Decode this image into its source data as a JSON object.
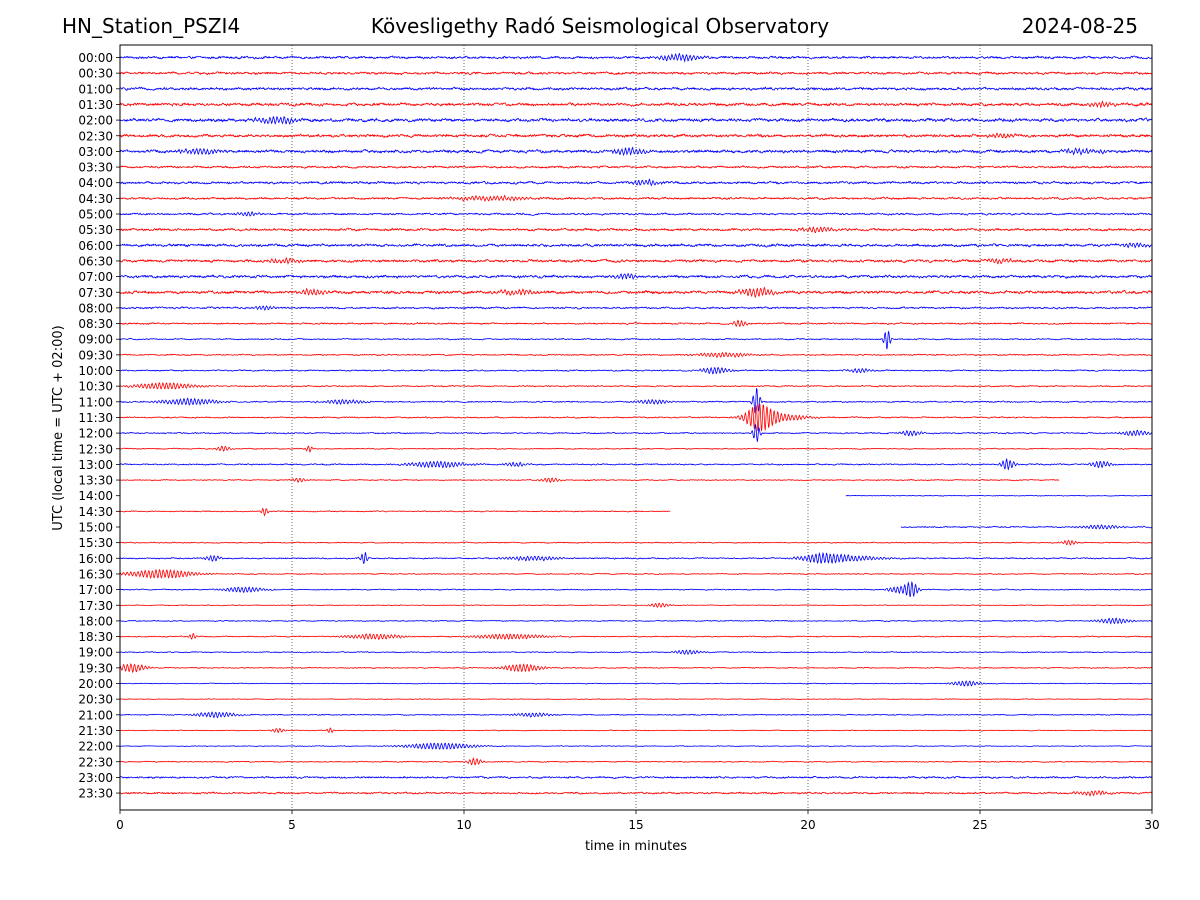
{
  "header": {
    "station": "HN_Station_PSZI4",
    "observatory": "Kövesligethy Radó Seismological Observatory",
    "date": "2024-08-25"
  },
  "chart_data": {
    "type": "line",
    "title": "Kövesligethy Radó Seismological Observatory",
    "xlabel": "time in minutes",
    "ylabel": "UTC (local time = UTC + 02:00)",
    "xlim": [
      0,
      30
    ],
    "x_ticks": [
      "0",
      "5",
      "10",
      "15",
      "20",
      "25",
      "30"
    ],
    "vertical_grid_minutes": [
      5,
      10,
      15,
      20,
      25
    ],
    "grid": "vertical dotted lines",
    "colors": {
      "even_rows": "#0000ff",
      "odd_rows": "#ff0000"
    },
    "traces": [
      {
        "label": "00:00",
        "start": 0,
        "end": 30,
        "noise": 0.9,
        "events": [
          [
            16.3,
            3.0,
            0.6
          ]
        ]
      },
      {
        "label": "00:30",
        "start": 0,
        "end": 30,
        "noise": 0.9,
        "events": []
      },
      {
        "label": "01:00",
        "start": 0,
        "end": 30,
        "noise": 1.0,
        "events": []
      },
      {
        "label": "01:30",
        "start": 0,
        "end": 30,
        "noise": 1.1,
        "events": [
          [
            28.5,
            2.0,
            0.4
          ]
        ]
      },
      {
        "label": "02:00",
        "start": 0,
        "end": 30,
        "noise": 1.2,
        "events": [
          [
            4.6,
            3.0,
            0.6
          ]
        ]
      },
      {
        "label": "02:30",
        "start": 0,
        "end": 30,
        "noise": 1.1,
        "events": [
          [
            25.6,
            2.0,
            0.4
          ]
        ]
      },
      {
        "label": "03:00",
        "start": 0,
        "end": 30,
        "noise": 1.1,
        "events": [
          [
            2.3,
            2.5,
            0.6
          ],
          [
            14.8,
            3.0,
            0.5
          ],
          [
            28.0,
            2.5,
            0.5
          ]
        ]
      },
      {
        "label": "03:30",
        "start": 0,
        "end": 30,
        "noise": 0.8,
        "events": []
      },
      {
        "label": "04:00",
        "start": 0,
        "end": 30,
        "noise": 0.9,
        "events": [
          [
            15.3,
            2.5,
            0.4
          ]
        ]
      },
      {
        "label": "04:30",
        "start": 0,
        "end": 30,
        "noise": 0.8,
        "events": [
          [
            10.8,
            2.0,
            1.2
          ]
        ]
      },
      {
        "label": "05:00",
        "start": 0,
        "end": 30,
        "noise": 0.7,
        "events": [
          [
            3.7,
            2.0,
            0.3
          ]
        ]
      },
      {
        "label": "05:30",
        "start": 0,
        "end": 30,
        "noise": 0.9,
        "events": [
          [
            20.3,
            2.0,
            0.6
          ]
        ]
      },
      {
        "label": "06:00",
        "start": 0,
        "end": 30,
        "noise": 1.0,
        "events": [
          [
            29.5,
            2.0,
            0.4
          ]
        ]
      },
      {
        "label": "06:30",
        "start": 0,
        "end": 30,
        "noise": 1.0,
        "events": [
          [
            4.8,
            2.0,
            0.5
          ],
          [
            25.5,
            2.0,
            0.4
          ]
        ]
      },
      {
        "label": "07:00",
        "start": 0,
        "end": 30,
        "noise": 1.0,
        "events": [
          [
            14.7,
            2.5,
            0.3
          ]
        ]
      },
      {
        "label": "07:30",
        "start": 0,
        "end": 30,
        "noise": 1.1,
        "events": [
          [
            5.6,
            2.5,
            0.4
          ],
          [
            11.6,
            2.5,
            0.5
          ],
          [
            18.5,
            4.0,
            0.5
          ]
        ]
      },
      {
        "label": "08:00",
        "start": 0,
        "end": 30,
        "noise": 0.7,
        "events": [
          [
            4.2,
            2.0,
            0.3
          ]
        ]
      },
      {
        "label": "08:30",
        "start": 0,
        "end": 30,
        "noise": 0.6,
        "events": [
          [
            18.0,
            3.0,
            0.2
          ]
        ]
      },
      {
        "label": "09:00",
        "start": 0,
        "end": 30,
        "noise": 0.5,
        "events": [
          [
            22.3,
            10.0,
            0.1
          ]
        ]
      },
      {
        "label": "09:30",
        "start": 0,
        "end": 30,
        "noise": 0.5,
        "events": [
          [
            17.5,
            2.0,
            0.8
          ]
        ]
      },
      {
        "label": "10:00",
        "start": 0,
        "end": 30,
        "noise": 0.5,
        "events": [
          [
            17.3,
            3.0,
            0.4
          ],
          [
            21.5,
            2.0,
            0.3
          ]
        ]
      },
      {
        "label": "10:30",
        "start": 0,
        "end": 30,
        "noise": 0.5,
        "events": [
          [
            1.3,
            3.0,
            0.9
          ]
        ]
      },
      {
        "label": "11:00",
        "start": 0,
        "end": 30,
        "noise": 0.5,
        "events": [
          [
            2.0,
            3.0,
            0.8
          ],
          [
            6.5,
            2.0,
            0.6
          ],
          [
            15.5,
            2.0,
            0.5
          ],
          [
            18.5,
            14.0,
            0.1
          ]
        ]
      },
      {
        "label": "11:30",
        "start": 0,
        "end": 30,
        "noise": 0.5,
        "events": [
          [
            18.6,
            12.0,
            0.4
          ],
          [
            19.2,
            3.0,
            0.8
          ]
        ]
      },
      {
        "label": "12:00",
        "start": 0,
        "end": 30,
        "noise": 0.5,
        "events": [
          [
            18.5,
            9.0,
            0.1
          ],
          [
            23.0,
            2.5,
            0.3
          ],
          [
            29.5,
            2.5,
            0.4
          ]
        ]
      },
      {
        "label": "12:30",
        "start": 0,
        "end": 30,
        "noise": 0.4,
        "events": [
          [
            3.0,
            2.5,
            0.2
          ],
          [
            5.5,
            3.0,
            0.1
          ]
        ]
      },
      {
        "label": "13:00",
        "start": 0,
        "end": 30,
        "noise": 0.5,
        "events": [
          [
            9.2,
            3.0,
            0.8
          ],
          [
            11.5,
            2.0,
            0.3
          ],
          [
            25.8,
            5.0,
            0.2
          ],
          [
            28.5,
            3.0,
            0.3
          ]
        ]
      },
      {
        "label": "13:30",
        "start": 0,
        "end": 27.3,
        "noise": 0.4,
        "events": [
          [
            5.2,
            2.0,
            0.2
          ],
          [
            12.5,
            2.0,
            0.3
          ]
        ]
      },
      {
        "label": "14:00",
        "start": 21.1,
        "end": 30,
        "noise": 0.3,
        "events": []
      },
      {
        "label": "14:30",
        "start": 0,
        "end": 16.0,
        "noise": 0.4,
        "events": [
          [
            4.2,
            4.0,
            0.1
          ]
        ]
      },
      {
        "label": "15:00",
        "start": 22.7,
        "end": 30,
        "noise": 0.5,
        "events": [
          [
            28.5,
            2.0,
            0.6
          ]
        ]
      },
      {
        "label": "15:30",
        "start": 0,
        "end": 30,
        "noise": 0.4,
        "events": [
          [
            27.6,
            2.5,
            0.2
          ]
        ]
      },
      {
        "label": "16:00",
        "start": 0,
        "end": 30,
        "noise": 0.5,
        "events": [
          [
            2.7,
            3.0,
            0.2
          ],
          [
            7.1,
            6.0,
            0.1
          ],
          [
            12.0,
            2.0,
            0.8
          ],
          [
            20.4,
            4.0,
            0.6
          ],
          [
            21.3,
            2.0,
            1.0
          ]
        ]
      },
      {
        "label": "16:30",
        "start": 0,
        "end": 30,
        "noise": 0.4,
        "events": [
          [
            1.2,
            4.0,
            1.0
          ]
        ]
      },
      {
        "label": "17:00",
        "start": 0,
        "end": 30,
        "noise": 0.4,
        "events": [
          [
            3.6,
            2.5,
            0.6
          ],
          [
            22.6,
            3.0,
            0.3
          ],
          [
            23.0,
            7.0,
            0.2
          ]
        ]
      },
      {
        "label": "17:30",
        "start": 0,
        "end": 30,
        "noise": 0.3,
        "events": [
          [
            15.7,
            2.0,
            0.3
          ]
        ]
      },
      {
        "label": "18:00",
        "start": 0,
        "end": 30,
        "noise": 0.4,
        "events": [
          [
            28.9,
            2.5,
            0.5
          ]
        ]
      },
      {
        "label": "18:30",
        "start": 0,
        "end": 30,
        "noise": 0.4,
        "events": [
          [
            2.1,
            3.0,
            0.1
          ],
          [
            7.4,
            2.5,
            0.8
          ],
          [
            11.3,
            2.5,
            1.0
          ]
        ]
      },
      {
        "label": "19:00",
        "start": 0,
        "end": 30,
        "noise": 0.4,
        "events": [
          [
            16.5,
            2.0,
            0.4
          ]
        ]
      },
      {
        "label": "19:30",
        "start": 0,
        "end": 30,
        "noise": 0.4,
        "events": [
          [
            0.35,
            4.0,
            0.4
          ],
          [
            11.7,
            3.5,
            0.6
          ]
        ]
      },
      {
        "label": "20:00",
        "start": 0,
        "end": 30,
        "noise": 0.3,
        "events": [
          [
            24.6,
            2.5,
            0.4
          ]
        ]
      },
      {
        "label": "20:30",
        "start": 0,
        "end": 30,
        "noise": 0.3,
        "events": []
      },
      {
        "label": "21:00",
        "start": 0,
        "end": 30,
        "noise": 0.4,
        "events": [
          [
            2.8,
            2.5,
            0.6
          ],
          [
            12.0,
            2.0,
            0.5
          ]
        ]
      },
      {
        "label": "21:30",
        "start": 0,
        "end": 30,
        "noise": 0.3,
        "events": [
          [
            4.6,
            2.0,
            0.2
          ],
          [
            6.1,
            2.5,
            0.1
          ]
        ]
      },
      {
        "label": "22:00",
        "start": 0,
        "end": 30,
        "noise": 0.3,
        "events": [
          [
            9.3,
            3.0,
            1.0
          ]
        ]
      },
      {
        "label": "22:30",
        "start": 0,
        "end": 30,
        "noise": 0.4,
        "events": [
          [
            10.3,
            3.5,
            0.2
          ]
        ]
      },
      {
        "label": "23:00",
        "start": 0,
        "end": 30,
        "noise": 0.7,
        "events": []
      },
      {
        "label": "23:30",
        "start": 0,
        "end": 30,
        "noise": 0.7,
        "events": [
          [
            28.3,
            2.0,
            0.5
          ]
        ]
      }
    ]
  }
}
